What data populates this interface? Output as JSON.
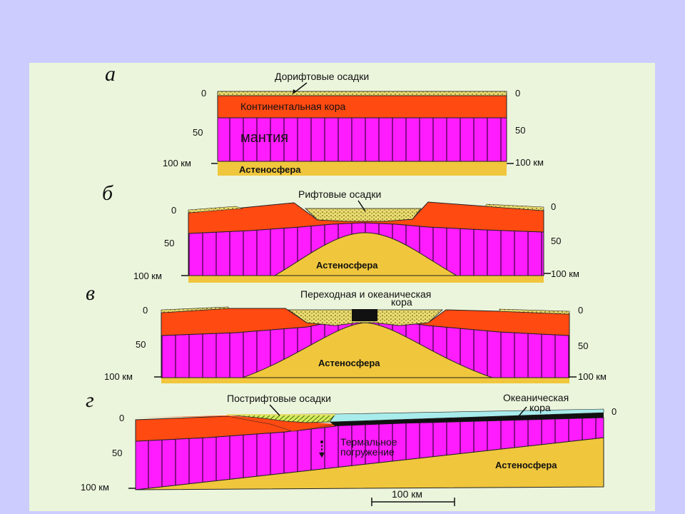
{
  "diagram": {
    "stage_a": {
      "letter": "а",
      "pre_rift_sediments": "Дорифтовые осадки",
      "continental_crust": "Континентальная кора",
      "mantle": "мантия",
      "asthenosphere": "Астеносфера",
      "depth_left": [
        "0",
        "50",
        "100 км"
      ],
      "depth_right": [
        "0",
        "50",
        "100 км"
      ]
    },
    "stage_b": {
      "letter": "б",
      "rift_sediments": "Рифтовые осадки",
      "asthenosphere": "Астеносфера",
      "depth_left": [
        "0",
        "50",
        "100 км"
      ],
      "depth_right": [
        "0",
        "50",
        "100 км"
      ]
    },
    "stage_v": {
      "letter": "в",
      "transitional_crust_line1": "Переходная и океаническая",
      "transitional_crust_line2": "кора",
      "asthenosphere": "Астеносфера",
      "depth_left": [
        "0",
        "50",
        "100 км"
      ],
      "depth_right": [
        "0",
        "50",
        "100 км"
      ]
    },
    "stage_g": {
      "letter": "г",
      "post_rift_sediments": "Пострифтовые осадки",
      "oceanic_crust_line1": "Океаническая",
      "oceanic_crust_line2": "кора",
      "thermal_line1": "Термальное",
      "thermal_line2": "погружение",
      "asthenosphere": "Астеносфера",
      "depth_left": [
        "0",
        "50",
        "100 км"
      ],
      "depth_right": [
        "0"
      ],
      "scale_bar": "100 км"
    },
    "colors": {
      "background": "#ccccff",
      "panel": "#ebf5dc",
      "crust": "#ff4a12",
      "mantle": "#ff1cff",
      "asthenosphere": "#f0c63c",
      "sediment": "#e7dc70",
      "ocean_water": "#a8ecec",
      "oceanic_crust": "#111111"
    }
  }
}
